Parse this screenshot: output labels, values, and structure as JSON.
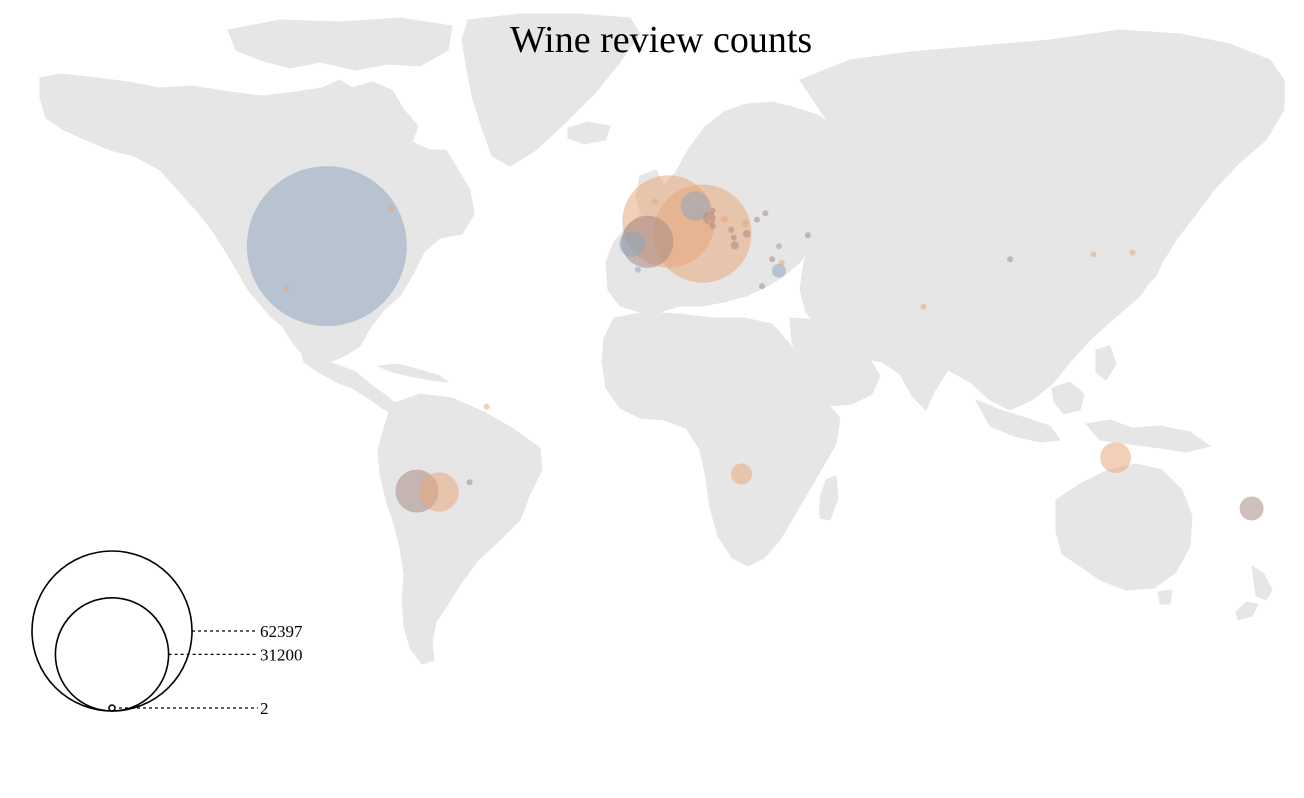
{
  "title": "Wine review counts",
  "colors": {
    "land": "#e6e6e6",
    "series_a": "#8fa6bd",
    "series_b": "#e8a87c",
    "series_c": "#a78b86"
  },
  "legend": {
    "values": [
      "62397",
      "31200",
      "2"
    ]
  },
  "bubbles": [
    {
      "name": "US",
      "lon": -98,
      "lat": 39,
      "value": 62397,
      "color": "#8fa6bd"
    },
    {
      "name": "France",
      "lon": 2.5,
      "lat": 46.5,
      "value": 20800,
      "color": "#e8a87c"
    },
    {
      "name": "Italy",
      "lon": 12.5,
      "lat": 42.8,
      "value": 23500,
      "color": "#e8a87c"
    },
    {
      "name": "Spain",
      "lon": -3.7,
      "lat": 40.3,
      "value": 6600,
      "color": "#a78b86"
    },
    {
      "name": "Portugal",
      "lon": -8.2,
      "lat": 39.6,
      "value": 1600,
      "color": "#8fa6bd"
    },
    {
      "name": "Germany",
      "lon": 10.4,
      "lat": 51.2,
      "value": 2100,
      "color": "#8fa6bd"
    },
    {
      "name": "Austria",
      "lon": 14.5,
      "lat": 47.5,
      "value": 380,
      "color": "#a78b86"
    },
    {
      "name": "Argentina",
      "lon": -65,
      "lat": -36,
      "value": 3800,
      "color": "#e8a87c"
    },
    {
      "name": "Chile",
      "lon": -71.5,
      "lat": -35.7,
      "value": 4500,
      "color": "#a78b86"
    },
    {
      "name": "Australia",
      "lon": 134,
      "lat": -25.5,
      "value": 2300,
      "color": "#e8a87c"
    },
    {
      "name": "New Zealand",
      "lon": 174,
      "lat": -41,
      "value": 1400,
      "color": "#a78b86"
    },
    {
      "name": "South Africa",
      "lon": 24,
      "lat": -30.5,
      "value": 1100,
      "color": "#e8a87c"
    },
    {
      "name": "Israel",
      "lon": 35,
      "lat": 31.5,
      "value": 480,
      "color": "#8fa6bd"
    },
    {
      "name": "Greece",
      "lon": 22,
      "lat": 39.2,
      "value": 160,
      "color": "#a78b86"
    },
    {
      "name": "Hungary",
      "lon": 19,
      "lat": 47.2,
      "value": 140,
      "color": "#e8a87c"
    },
    {
      "name": "Bulgaria",
      "lon": 25.5,
      "lat": 42.7,
      "value": 140,
      "color": "#a78b86"
    },
    {
      "name": "Romania",
      "lon": 25,
      "lat": 45.9,
      "value": 120,
      "color": "#e8a87c"
    },
    {
      "name": "Croatia",
      "lon": 15.5,
      "lat": 45.1,
      "value": 70,
      "color": "#a78b86"
    },
    {
      "name": "Slovenia",
      "lon": 14.8,
      "lat": 46.1,
      "value": 90,
      "color": "#e8a87c"
    },
    {
      "name": "Moldova",
      "lon": 28.5,
      "lat": 47,
      "value": 60,
      "color": "#a78b86"
    },
    {
      "name": "Georgia",
      "lon": 43.5,
      "lat": 42.3,
      "value": 90,
      "color": "#a78b86"
    },
    {
      "name": "Turkey",
      "lon": 35,
      "lat": 39,
      "value": 90,
      "color": "#8fa6bd"
    },
    {
      "name": "Lebanon",
      "lon": 35.8,
      "lat": 33.9,
      "value": 40,
      "color": "#e8a87c"
    },
    {
      "name": "Cyprus",
      "lon": 33,
      "lat": 35,
      "value": 25,
      "color": "#a78b86"
    },
    {
      "name": "Egypt",
      "lon": 30,
      "lat": 26.8,
      "value": 10,
      "color": "#a78b86"
    },
    {
      "name": "Morocco",
      "lon": -6.5,
      "lat": 31.8,
      "value": 30,
      "color": "#8fa6bd"
    },
    {
      "name": "England",
      "lon": -1.5,
      "lat": 52.5,
      "value": 35,
      "color": "#e8a87c"
    },
    {
      "name": "Czech Republic",
      "lon": 15.5,
      "lat": 49.8,
      "value": 20,
      "color": "#a78b86"
    },
    {
      "name": "Ukraine",
      "lon": 31,
      "lat": 49,
      "value": 15,
      "color": "#a78b86"
    },
    {
      "name": "Serbia",
      "lon": 21,
      "lat": 44,
      "value": 20,
      "color": "#a78b86"
    },
    {
      "name": "Macedonia",
      "lon": 21.7,
      "lat": 41.6,
      "value": 20,
      "color": "#a78b86"
    },
    {
      "name": "Canada",
      "lon": -79,
      "lat": 50.5,
      "value": 80,
      "color": "#e8a87c"
    },
    {
      "name": "Mexico",
      "lon": -110,
      "lat": 26,
      "value": 50,
      "color": "#e8a87c"
    },
    {
      "name": "Brazil",
      "lon": -51,
      "lat": -10,
      "value": 40,
      "color": "#e8a87c"
    },
    {
      "name": "Uruguay",
      "lon": -56,
      "lat": -33,
      "value": 60,
      "color": "#a78b86"
    },
    {
      "name": "India",
      "lon": 77.5,
      "lat": 20.5,
      "value": 8,
      "color": "#e8a87c"
    },
    {
      "name": "China",
      "lon": 103,
      "lat": 35,
      "value": 2,
      "color": "#a78b86"
    },
    {
      "name": "South Korea",
      "lon": 127.5,
      "lat": 36.5,
      "value": 5,
      "color": "#e8a87c"
    },
    {
      "name": "Japan",
      "lon": 139,
      "lat": 37,
      "value": 4,
      "color": "#e8a87c"
    }
  ]
}
